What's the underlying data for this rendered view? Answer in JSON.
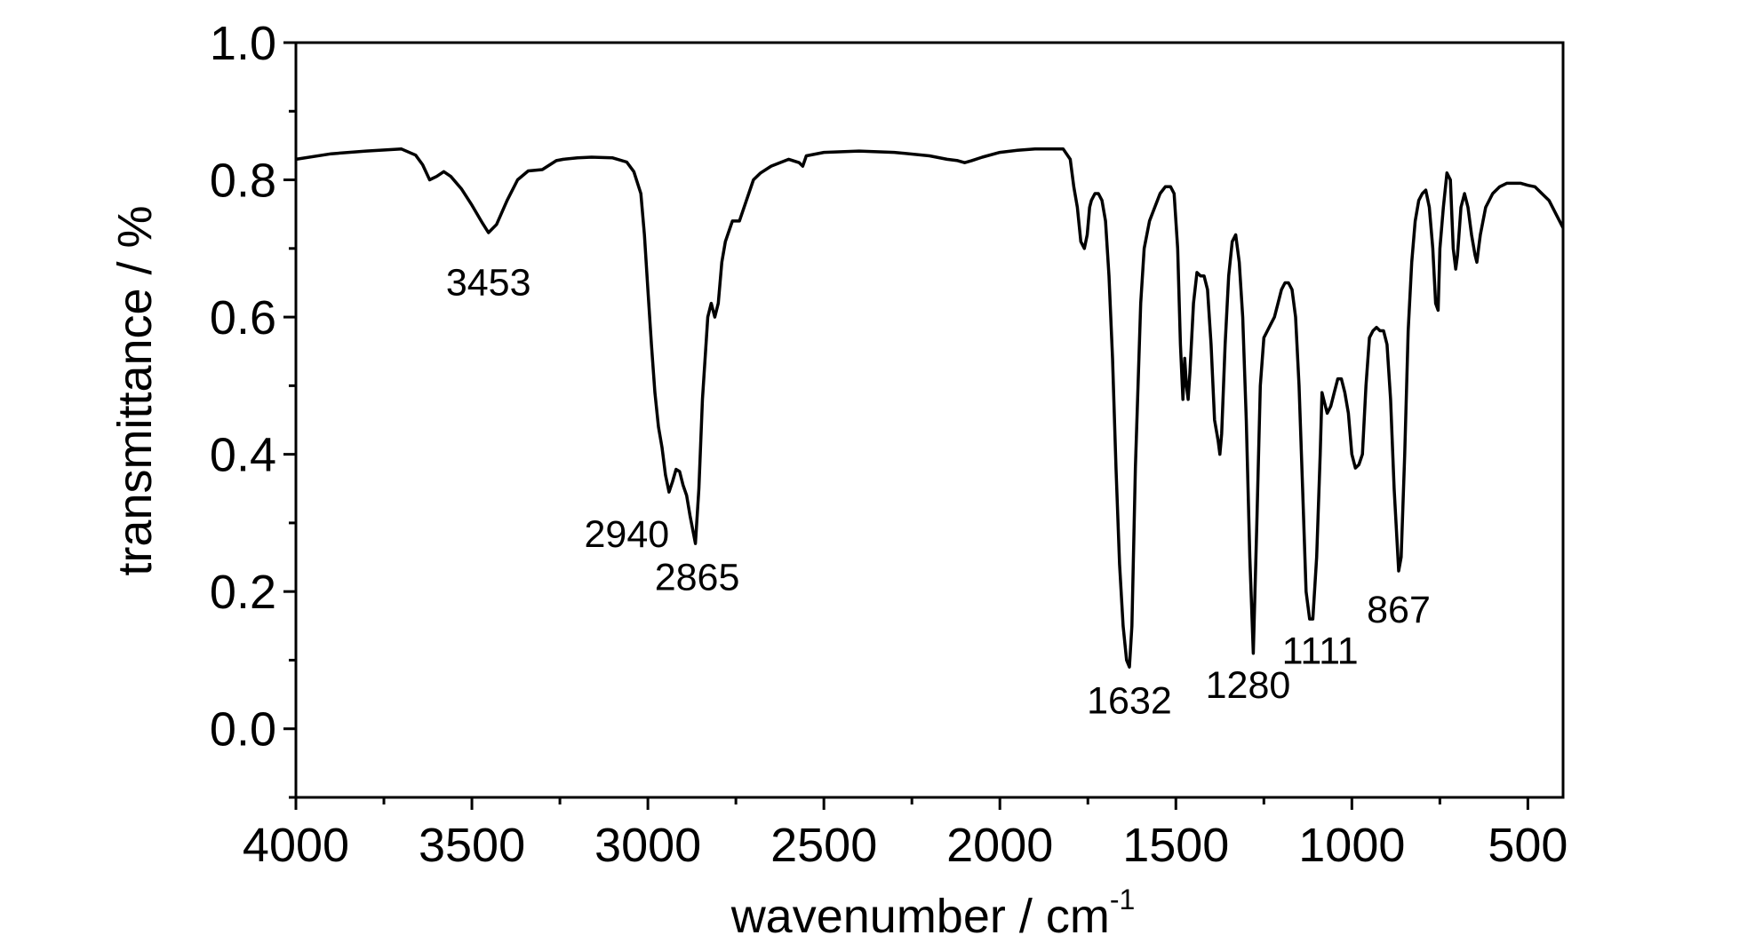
{
  "chart_data": {
    "type": "line",
    "xlabel": "wavenumber / cm",
    "xlabel_superscript": "-1",
    "ylabel": "transmittance / %",
    "xlim": [
      4000,
      400
    ],
    "ylim": [
      -0.1,
      1.0
    ],
    "x_reversed": true,
    "grid": false,
    "x_ticks": [
      {
        "value": 4000,
        "label": "4000"
      },
      {
        "value": 3500,
        "label": "3500"
      },
      {
        "value": 3000,
        "label": "3000"
      },
      {
        "value": 2500,
        "label": "2500"
      },
      {
        "value": 2000,
        "label": "2000"
      },
      {
        "value": 1500,
        "label": "1500"
      },
      {
        "value": 1000,
        "label": "1000"
      },
      {
        "value": 500,
        "label": "500"
      }
    ],
    "y_ticks": [
      {
        "value": 0.0,
        "label": "0.0"
      },
      {
        "value": 0.2,
        "label": "0.2"
      },
      {
        "value": 0.4,
        "label": "0.4"
      },
      {
        "value": 0.6,
        "label": "0.6"
      },
      {
        "value": 0.8,
        "label": "0.8"
      },
      {
        "value": 1.0,
        "label": "1.0"
      }
    ],
    "series": [
      {
        "color": "#000000",
        "x": [
          4000,
          3900,
          3800,
          3700,
          3660,
          3640,
          3620,
          3600,
          3580,
          3560,
          3530,
          3500,
          3470,
          3453,
          3430,
          3400,
          3370,
          3340,
          3300,
          3260,
          3240,
          3200,
          3160,
          3100,
          3060,
          3040,
          3020,
          3010,
          3000,
          2990,
          2980,
          2970,
          2960,
          2950,
          2940,
          2930,
          2920,
          2910,
          2900,
          2890,
          2880,
          2865,
          2855,
          2845,
          2830,
          2820,
          2810,
          2800,
          2790,
          2780,
          2760,
          2740,
          2720,
          2700,
          2680,
          2650,
          2600,
          2570,
          2560,
          2550,
          2500,
          2400,
          2300,
          2200,
          2150,
          2120,
          2100,
          2080,
          2050,
          2000,
          1950,
          1900,
          1850,
          1820,
          1800,
          1790,
          1780,
          1770,
          1760,
          1752,
          1745,
          1740,
          1730,
          1720,
          1710,
          1700,
          1690,
          1680,
          1670,
          1660,
          1650,
          1640,
          1632,
          1625,
          1615,
          1600,
          1590,
          1575,
          1560,
          1545,
          1530,
          1515,
          1505,
          1495,
          1487,
          1480,
          1475,
          1470,
          1465,
          1460,
          1455,
          1450,
          1440,
          1430,
          1420,
          1410,
          1400,
          1390,
          1380,
          1375,
          1370,
          1360,
          1350,
          1340,
          1330,
          1320,
          1310,
          1300,
          1290,
          1280,
          1270,
          1260,
          1250,
          1240,
          1230,
          1220,
          1210,
          1200,
          1190,
          1180,
          1170,
          1160,
          1150,
          1140,
          1130,
          1120,
          1111,
          1100,
          1090,
          1085,
          1080,
          1070,
          1060,
          1050,
          1040,
          1030,
          1020,
          1010,
          1000,
          990,
          980,
          970,
          960,
          950,
          940,
          930,
          920,
          910,
          900,
          890,
          880,
          867,
          860,
          850,
          840,
          830,
          820,
          810,
          800,
          790,
          780,
          770,
          762,
          755,
          750,
          740,
          730,
          720,
          712,
          705,
          700,
          690,
          680,
          670,
          660,
          650,
          645,
          640,
          635,
          620,
          600,
          580,
          560,
          540,
          520,
          500,
          480,
          460,
          440,
          420,
          400
        ],
        "y": [
          0.83,
          0.838,
          0.842,
          0.845,
          0.836,
          0.822,
          0.8,
          0.805,
          0.812,
          0.805,
          0.787,
          0.763,
          0.737,
          0.723,
          0.735,
          0.77,
          0.8,
          0.813,
          0.815,
          0.828,
          0.83,
          0.832,
          0.833,
          0.832,
          0.826,
          0.812,
          0.78,
          0.72,
          0.64,
          0.56,
          0.49,
          0.44,
          0.41,
          0.37,
          0.345,
          0.36,
          0.378,
          0.375,
          0.355,
          0.34,
          0.31,
          0.27,
          0.35,
          0.48,
          0.6,
          0.62,
          0.6,
          0.62,
          0.68,
          0.71,
          0.74,
          0.74,
          0.77,
          0.8,
          0.81,
          0.82,
          0.83,
          0.825,
          0.82,
          0.835,
          0.84,
          0.842,
          0.84,
          0.835,
          0.83,
          0.828,
          0.825,
          0.828,
          0.833,
          0.84,
          0.843,
          0.845,
          0.845,
          0.845,
          0.83,
          0.79,
          0.76,
          0.71,
          0.7,
          0.72,
          0.76,
          0.77,
          0.78,
          0.78,
          0.77,
          0.74,
          0.66,
          0.54,
          0.38,
          0.24,
          0.15,
          0.1,
          0.09,
          0.15,
          0.38,
          0.62,
          0.7,
          0.74,
          0.76,
          0.78,
          0.79,
          0.79,
          0.78,
          0.7,
          0.56,
          0.48,
          0.54,
          0.5,
          0.48,
          0.52,
          0.57,
          0.62,
          0.665,
          0.66,
          0.66,
          0.64,
          0.56,
          0.45,
          0.42,
          0.4,
          0.43,
          0.56,
          0.66,
          0.71,
          0.72,
          0.68,
          0.6,
          0.45,
          0.25,
          0.11,
          0.3,
          0.5,
          0.57,
          0.58,
          0.59,
          0.6,
          0.62,
          0.64,
          0.65,
          0.65,
          0.64,
          0.6,
          0.5,
          0.35,
          0.2,
          0.16,
          0.16,
          0.25,
          0.4,
          0.49,
          0.48,
          0.46,
          0.47,
          0.49,
          0.51,
          0.51,
          0.49,
          0.46,
          0.4,
          0.38,
          0.385,
          0.4,
          0.5,
          0.57,
          0.58,
          0.585,
          0.58,
          0.58,
          0.56,
          0.48,
          0.35,
          0.23,
          0.25,
          0.4,
          0.58,
          0.68,
          0.74,
          0.77,
          0.78,
          0.785,
          0.76,
          0.7,
          0.62,
          0.61,
          0.7,
          0.76,
          0.81,
          0.8,
          0.7,
          0.67,
          0.69,
          0.76,
          0.78,
          0.76,
          0.72,
          0.69,
          0.68,
          0.7,
          0.72,
          0.76,
          0.78,
          0.79,
          0.795,
          0.795,
          0.795,
          0.792,
          0.79,
          0.78,
          0.77,
          0.75,
          0.73
        ]
      }
    ],
    "annotations": [
      {
        "text": "3453",
        "x": 3453,
        "y": 0.632
      },
      {
        "text": "2940",
        "x": 3060,
        "y": 0.265
      },
      {
        "text": "2865",
        "x": 2860,
        "y": 0.202
      },
      {
        "text": "1632",
        "x": 1632,
        "y": 0.022
      },
      {
        "text": "1280",
        "x": 1295,
        "y": 0.045
      },
      {
        "text": "1111",
        "x": 1090,
        "y": 0.095
      },
      {
        "text": "867",
        "x": 867,
        "y": 0.155
      }
    ]
  }
}
